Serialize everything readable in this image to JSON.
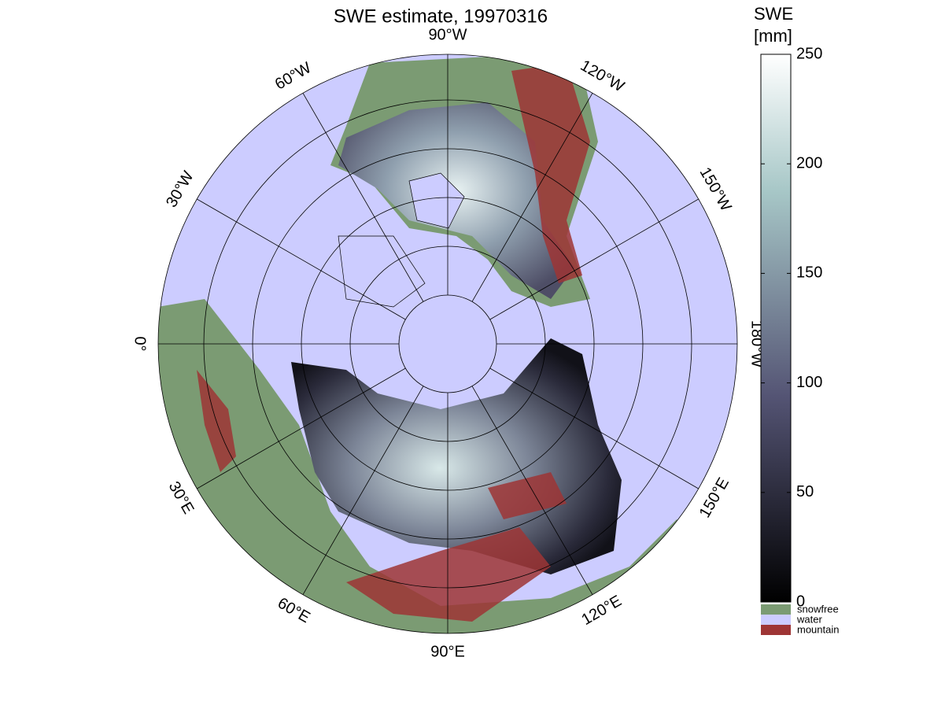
{
  "title": "SWE estimate, 19970316",
  "colorbar": {
    "label": [
      "SWE",
      "[mm]"
    ],
    "clim": [
      0,
      250
    ],
    "ticks": [
      0,
      50,
      100,
      150,
      200,
      250
    ]
  },
  "meridian_labels": [
    "90°W",
    "120°W",
    "150°W",
    "180°W",
    "150°E",
    "120°E",
    "90°E",
    "60°E",
    "30°E",
    "0°",
    "30°W",
    "60°W"
  ],
  "legend": [
    {
      "name": "snowfree",
      "color": "#7b9b73"
    },
    {
      "name": "water",
      "color": "#ccccff"
    },
    {
      "name": "mountain",
      "color": "#9e3535"
    }
  ]
}
